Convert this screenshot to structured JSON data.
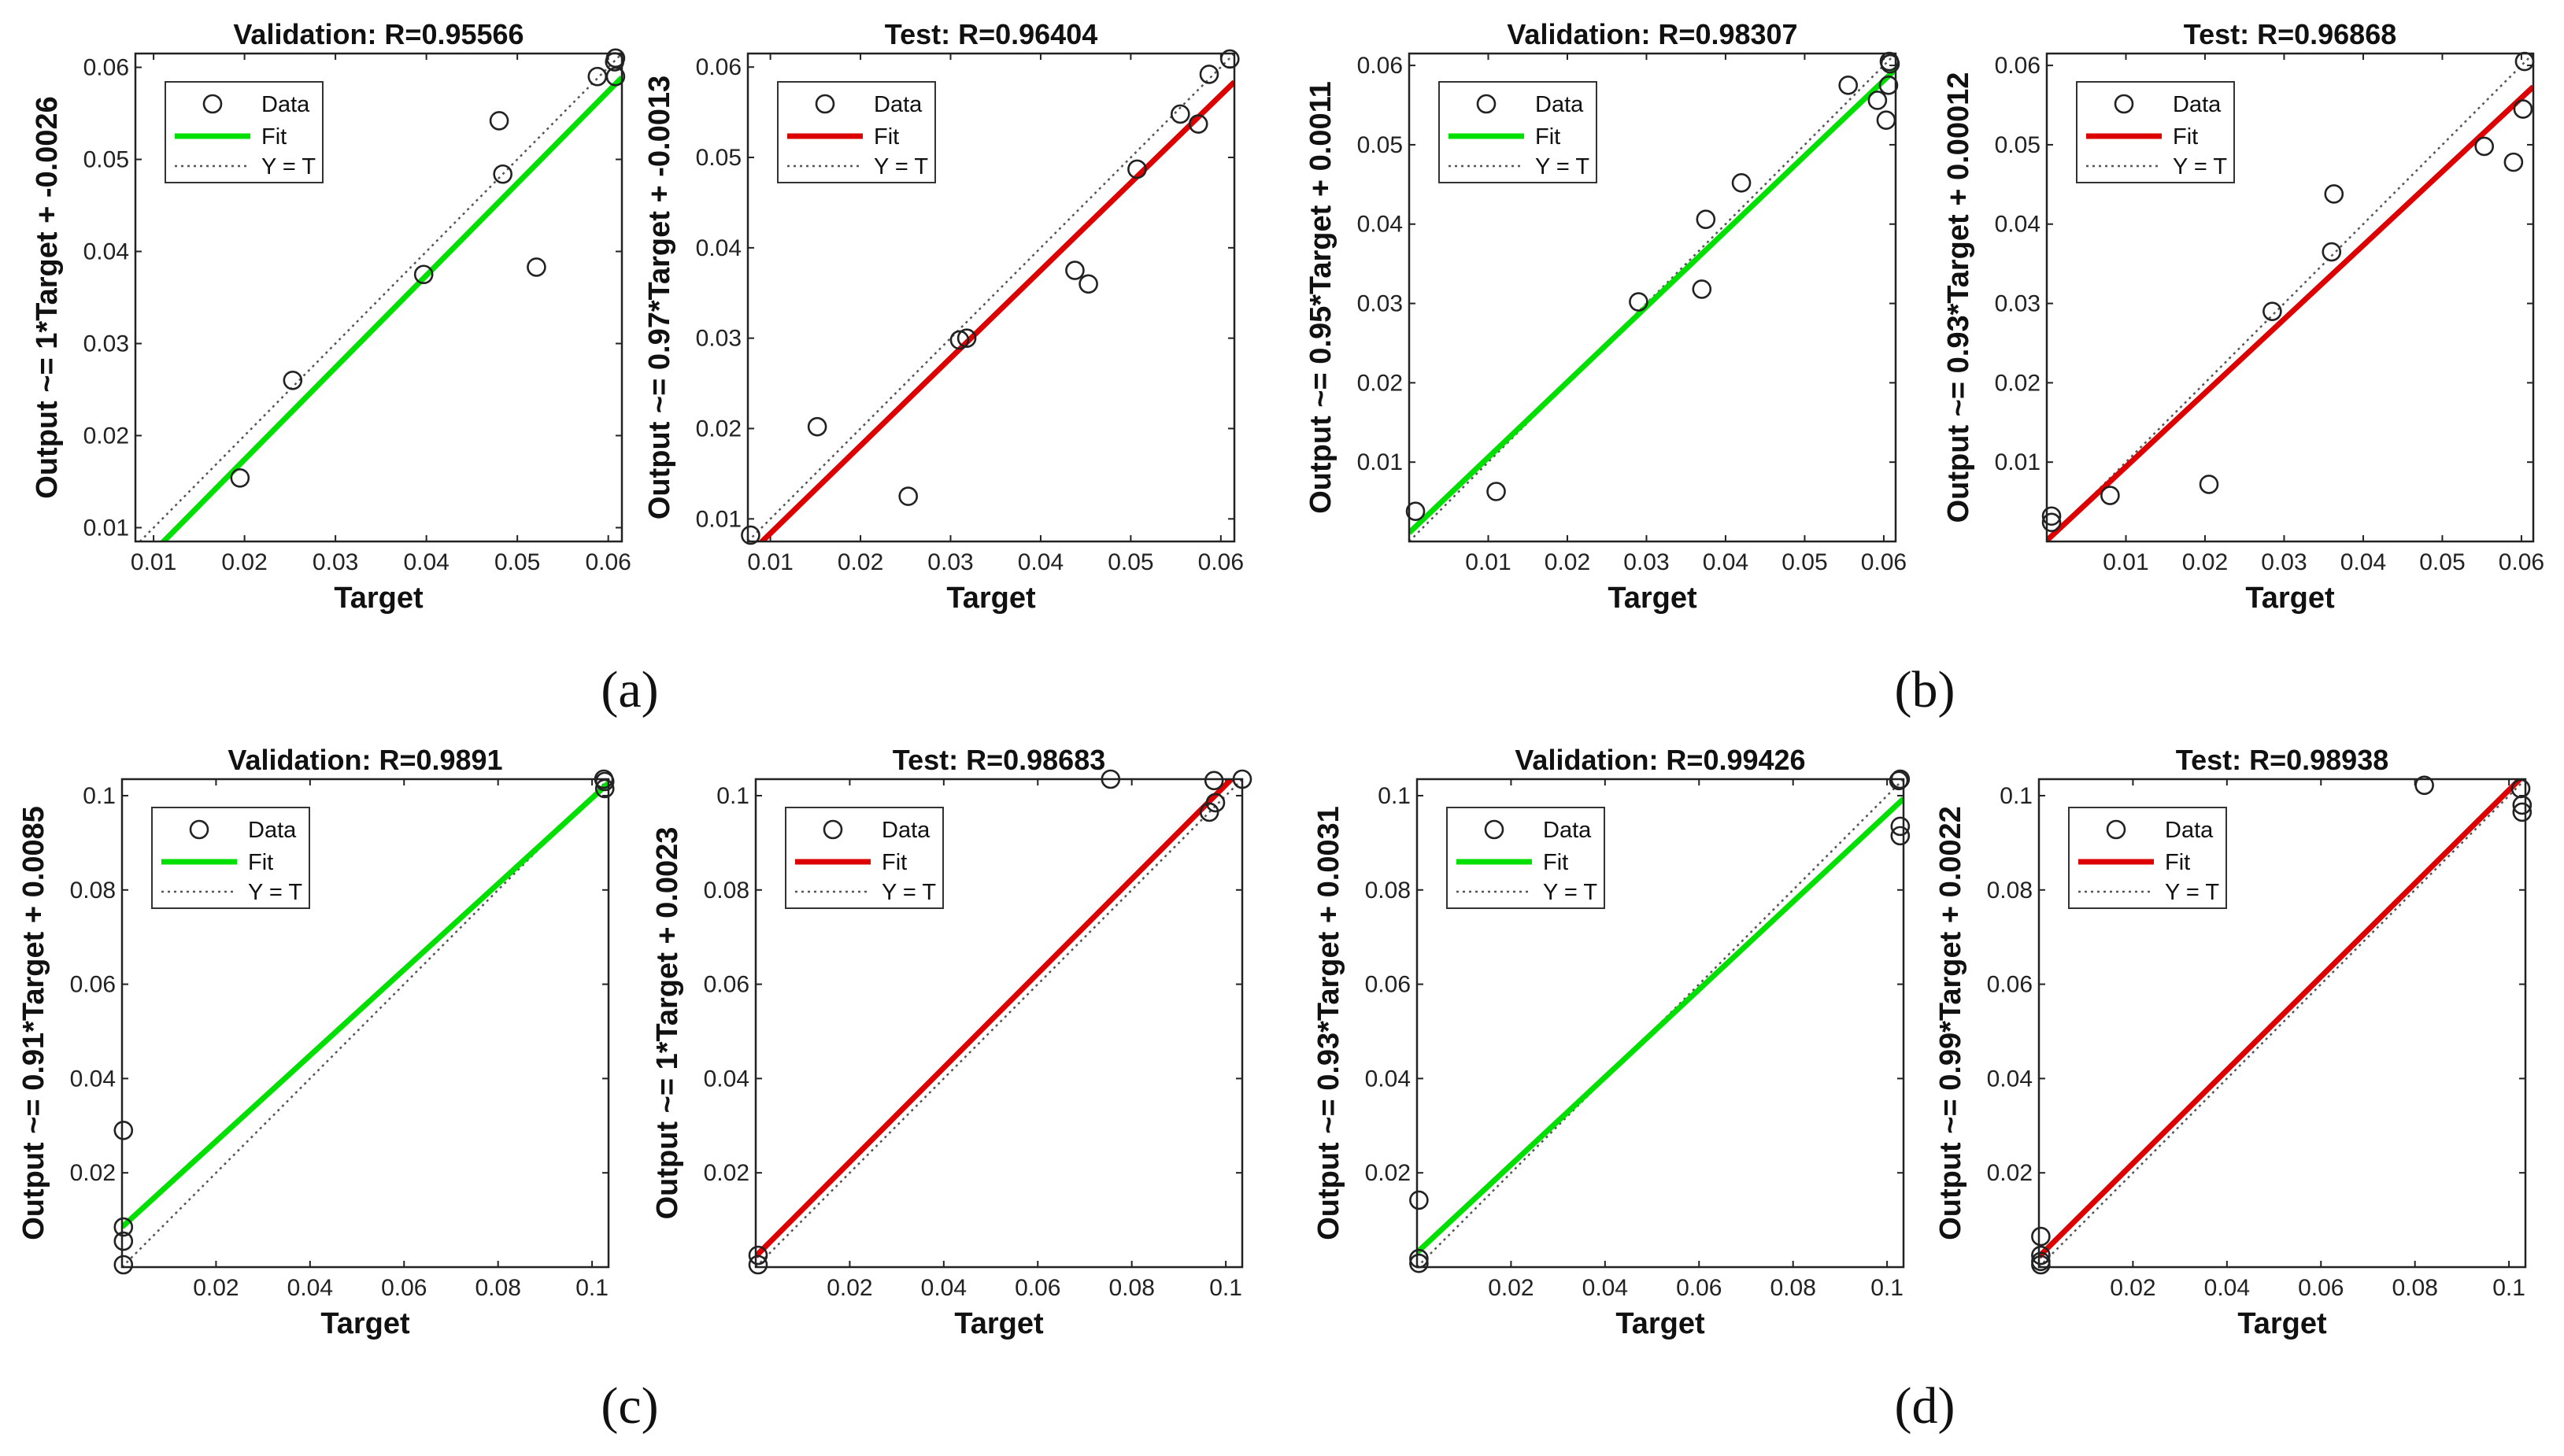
{
  "panel_labels": [
    "(a)",
    "(b)",
    "(c)",
    "(d)"
  ],
  "legend": {
    "data": "Data",
    "fit": "Fit",
    "identity": "Y = T"
  },
  "colors": {
    "validation_fit": "#00e000",
    "test_fit": "#dd0000",
    "marker": "#222222",
    "identity": "#555555"
  },
  "chart_data": [
    {
      "type": "scatter",
      "panel": "(a)",
      "title": "Validation: R=0.95566",
      "xlabel": "Target",
      "ylabel": "Output ~= 1*Target + -0.0026",
      "xlim": [
        0.008,
        0.0615
      ],
      "ylim": [
        0.0085,
        0.0615
      ],
      "xticks": [
        0.01,
        0.02,
        0.03,
        0.04,
        0.05,
        0.06
      ],
      "yticks": [
        0.01,
        0.02,
        0.03,
        0.04,
        0.05,
        0.06
      ],
      "xtick_labels": [
        "0.01",
        "0.02",
        "0.03",
        "0.04",
        "0.05",
        "0.06"
      ],
      "ytick_labels": [
        "0.01",
        "0.02",
        "0.03",
        "0.04",
        "0.05",
        "0.06"
      ],
      "fit": {
        "slope": 1.0,
        "intercept": -0.0026
      },
      "points": [
        [
          0.0195,
          0.0154
        ],
        [
          0.0253,
          0.026
        ],
        [
          0.0397,
          0.0375
        ],
        [
          0.048,
          0.0542
        ],
        [
          0.0484,
          0.0484
        ],
        [
          0.0521,
          0.0383
        ],
        [
          0.0588,
          0.059
        ],
        [
          0.0607,
          0.0606
        ],
        [
          0.0608,
          0.061
        ],
        [
          0.0608,
          0.059
        ]
      ]
    },
    {
      "type": "scatter",
      "panel": "(a)",
      "title": "Test: R=0.96404",
      "xlabel": "Target",
      "ylabel": "Output ~= 0.97*Target + -0.0013",
      "xlim": [
        0.0075,
        0.0615
      ],
      "ylim": [
        0.0075,
        0.0615
      ],
      "xticks": [
        0.01,
        0.02,
        0.03,
        0.04,
        0.05,
        0.06
      ],
      "yticks": [
        0.01,
        0.02,
        0.03,
        0.04,
        0.05,
        0.06
      ],
      "xtick_labels": [
        "0.01",
        "0.02",
        "0.03",
        "0.04",
        "0.05",
        "0.06"
      ],
      "ytick_labels": [
        "0.01",
        "0.02",
        "0.03",
        "0.04",
        "0.05",
        "0.06"
      ],
      "fit": {
        "slope": 0.97,
        "intercept": -0.0013
      },
      "points": [
        [
          0.0078,
          0.0082
        ],
        [
          0.0152,
          0.0202
        ],
        [
          0.0253,
          0.0125
        ],
        [
          0.031,
          0.0298
        ],
        [
          0.0318,
          0.03
        ],
        [
          0.0438,
          0.0375
        ],
        [
          0.0453,
          0.036
        ],
        [
          0.0507,
          0.0487
        ],
        [
          0.0555,
          0.0548
        ],
        [
          0.0575,
          0.0537
        ],
        [
          0.0587,
          0.0592
        ],
        [
          0.061,
          0.0609
        ]
      ]
    },
    {
      "type": "scatter",
      "panel": "(b)",
      "title": "Validation: R=0.98307",
      "xlabel": "Target",
      "ylabel": "Output ~= 0.95*Target + 0.0011",
      "xlim": [
        0.0,
        0.0615
      ],
      "ylim": [
        0.0,
        0.0615
      ],
      "xticks": [
        0.01,
        0.02,
        0.03,
        0.04,
        0.05,
        0.06
      ],
      "yticks": [
        0.01,
        0.02,
        0.03,
        0.04,
        0.05,
        0.06
      ],
      "xtick_labels": [
        "0.01",
        "0.02",
        "0.03",
        "0.04",
        "0.05",
        "0.06"
      ],
      "ytick_labels": [
        "0.01",
        "0.02",
        "0.03",
        "0.04",
        "0.05",
        "0.06"
      ],
      "fit": {
        "slope": 0.95,
        "intercept": 0.0011
      },
      "points": [
        [
          0.0008,
          0.0038
        ],
        [
          0.011,
          0.0063
        ],
        [
          0.029,
          0.0302
        ],
        [
          0.037,
          0.0318
        ],
        [
          0.0375,
          0.0406
        ],
        [
          0.042,
          0.0452
        ],
        [
          0.0555,
          0.0575
        ],
        [
          0.0592,
          0.0556
        ],
        [
          0.0603,
          0.0531
        ],
        [
          0.0606,
          0.0575
        ],
        [
          0.0607,
          0.0605
        ],
        [
          0.0608,
          0.0602
        ]
      ]
    },
    {
      "type": "scatter",
      "panel": "(b)",
      "title": "Test: R=0.96868",
      "xlabel": "Target",
      "ylabel": "Output ~= 0.93*Target + 0.00012",
      "xlim": [
        0.0,
        0.0615
      ],
      "ylim": [
        0.0,
        0.0615
      ],
      "xticks": [
        0.01,
        0.02,
        0.03,
        0.04,
        0.05,
        0.06
      ],
      "yticks": [
        0.01,
        0.02,
        0.03,
        0.04,
        0.05,
        0.06
      ],
      "xtick_labels": [
        "0.01",
        "0.02",
        "0.03",
        "0.04",
        "0.05",
        "0.06"
      ],
      "ytick_labels": [
        "0.01",
        "0.02",
        "0.03",
        "0.04",
        "0.05",
        "0.06"
      ],
      "fit": {
        "slope": 0.93,
        "intercept": 0.00012
      },
      "points": [
        [
          0.0006,
          0.0032
        ],
        [
          0.0006,
          0.0024
        ],
        [
          0.008,
          0.0058
        ],
        [
          0.0205,
          0.0072
        ],
        [
          0.0285,
          0.029
        ],
        [
          0.036,
          0.0365
        ],
        [
          0.0363,
          0.0438
        ],
        [
          0.0553,
          0.0498
        ],
        [
          0.059,
          0.0478
        ],
        [
          0.0602,
          0.0545
        ],
        [
          0.0604,
          0.0605
        ]
      ]
    },
    {
      "type": "scatter",
      "panel": "(c)",
      "title": "Validation: R=0.9891",
      "xlabel": "Target",
      "ylabel": "Output ~= 0.91*Target + 0.0085",
      "xlim": [
        0.0,
        0.1035
      ],
      "ylim": [
        0.0,
        0.1035
      ],
      "xticks": [
        0.02,
        0.04,
        0.06,
        0.08,
        0.1
      ],
      "yticks": [
        0.02,
        0.04,
        0.06,
        0.08,
        0.1
      ],
      "xtick_labels": [
        "0.02",
        "0.04",
        "0.06",
        "0.08",
        "0.1"
      ],
      "ytick_labels": [
        "0.02",
        "0.04",
        "0.06",
        "0.08",
        "0.1"
      ],
      "fit": {
        "slope": 0.91,
        "intercept": 0.0085
      },
      "points": [
        [
          0.0003,
          0.029
        ],
        [
          0.0003,
          0.0085
        ],
        [
          0.0003,
          0.0055
        ],
        [
          0.0003,
          0.0005
        ],
        [
          0.1025,
          0.1035
        ],
        [
          0.1027,
          0.103
        ],
        [
          0.1027,
          0.1015
        ]
      ]
    },
    {
      "type": "scatter",
      "panel": "(c)",
      "title": "Test: R=0.98683",
      "xlabel": "Target",
      "ylabel": "Output ~= 1*Target + 0.0023",
      "xlim": [
        0.0,
        0.1035
      ],
      "ylim": [
        0.0,
        0.1035
      ],
      "xticks": [
        0.02,
        0.04,
        0.06,
        0.08,
        0.1
      ],
      "yticks": [
        0.02,
        0.04,
        0.06,
        0.08,
        0.1
      ],
      "xtick_labels": [
        "0.02",
        "0.04",
        "0.06",
        "0.08",
        "0.1"
      ],
      "ytick_labels": [
        "0.02",
        "0.04",
        "0.06",
        "0.08",
        "0.1"
      ],
      "fit": {
        "slope": 1.0,
        "intercept": 0.0023
      },
      "points": [
        [
          0.0005,
          0.0025
        ],
        [
          0.0005,
          0.0005
        ],
        [
          0.0755,
          0.1035
        ],
        [
          0.0965,
          0.0965
        ],
        [
          0.0975,
          0.1032
        ],
        [
          0.0978,
          0.0985
        ],
        [
          0.1035,
          0.1035
        ]
      ]
    },
    {
      "type": "scatter",
      "panel": "(d)",
      "title": "Validation: R=0.99426",
      "xlabel": "Target",
      "ylabel": "Output ~= 0.93*Target + 0.0031",
      "xlim": [
        0.0,
        0.1035
      ],
      "ylim": [
        0.0,
        0.1035
      ],
      "xticks": [
        0.02,
        0.04,
        0.06,
        0.08,
        0.1
      ],
      "yticks": [
        0.02,
        0.04,
        0.06,
        0.08,
        0.1
      ],
      "xtick_labels": [
        "0.02",
        "0.04",
        "0.06",
        "0.08",
        "0.1"
      ],
      "ytick_labels": [
        "0.02",
        "0.04",
        "0.06",
        "0.08",
        "0.1"
      ],
      "fit": {
        "slope": 0.93,
        "intercept": 0.0031
      },
      "points": [
        [
          0.0004,
          0.0142
        ],
        [
          0.0004,
          0.0018
        ],
        [
          0.0004,
          0.0008
        ],
        [
          0.1025,
          0.1032
        ],
        [
          0.1028,
          0.1035
        ],
        [
          0.1028,
          0.0935
        ],
        [
          0.1028,
          0.0915
        ]
      ]
    },
    {
      "type": "scatter",
      "panel": "(d)",
      "title": "Test: R=0.98938",
      "xlabel": "Target",
      "ylabel": "Output ~= 0.99*Target + 0.0022",
      "xlim": [
        0.0,
        0.1035
      ],
      "ylim": [
        0.0,
        0.1035
      ],
      "xticks": [
        0.02,
        0.04,
        0.06,
        0.08,
        0.1
      ],
      "yticks": [
        0.02,
        0.04,
        0.06,
        0.08,
        0.1
      ],
      "xtick_labels": [
        "0.02",
        "0.04",
        "0.06",
        "0.08",
        "0.1"
      ],
      "ytick_labels": [
        "0.02",
        "0.04",
        "0.06",
        "0.08",
        "0.1"
      ],
      "fit": {
        "slope": 0.99,
        "intercept": 0.0022
      },
      "points": [
        [
          0.0004,
          0.0065
        ],
        [
          0.0004,
          0.0025
        ],
        [
          0.0004,
          0.0012
        ],
        [
          0.0004,
          0.0005
        ],
        [
          0.082,
          0.1022
        ],
        [
          0.1025,
          0.1015
        ],
        [
          0.1028,
          0.098
        ],
        [
          0.1028,
          0.0965
        ]
      ]
    }
  ]
}
